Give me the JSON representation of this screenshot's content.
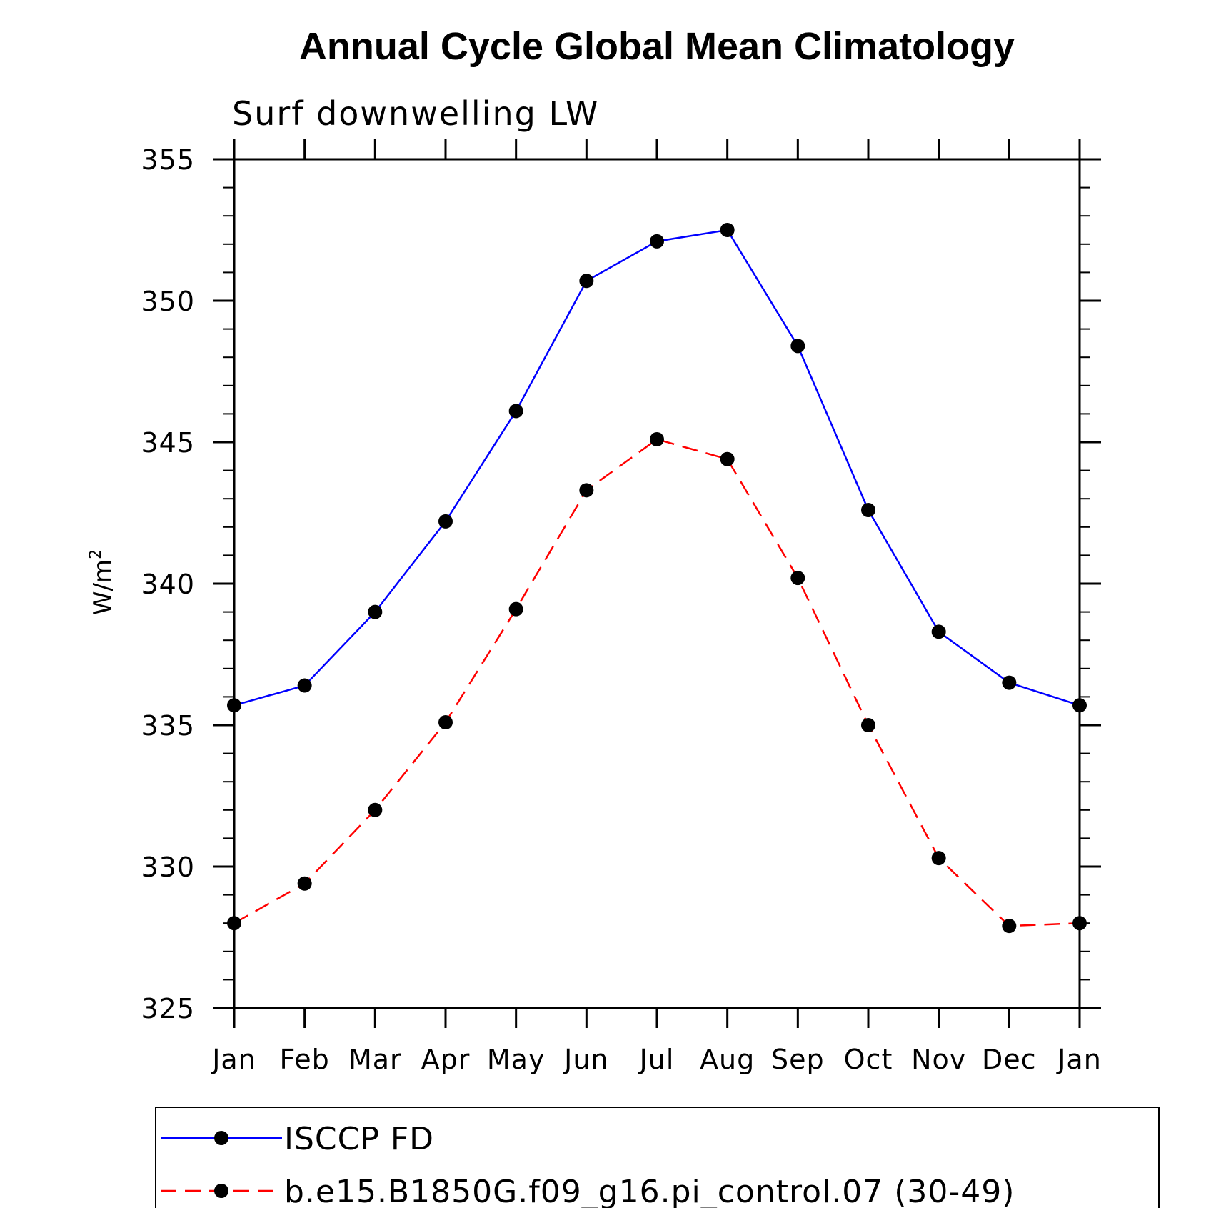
{
  "chart_data": {
    "type": "line",
    "title": "Annual Cycle Global Mean Climatology",
    "subtitle": "Surf downwelling LW",
    "ylabel": "W/m",
    "ylabel_superscript": "2",
    "xlabel": "",
    "categories": [
      "Jan",
      "Feb",
      "Mar",
      "Apr",
      "May",
      "Jun",
      "Jul",
      "Aug",
      "Sep",
      "Oct",
      "Nov",
      "Dec",
      "Jan"
    ],
    "ylim": [
      325,
      355
    ],
    "yticks": [
      325,
      330,
      335,
      340,
      345,
      350,
      355
    ],
    "legend_position": "bottom",
    "series": [
      {
        "name": "ISCCP FD",
        "color": "#0000ff",
        "line_style": "solid",
        "values": [
          335.7,
          336.4,
          339.0,
          342.2,
          346.1,
          350.7,
          352.1,
          352.5,
          348.4,
          342.6,
          338.3,
          336.5,
          335.7
        ]
      },
      {
        "name": "b.e15.B1850G.f09_g16.pi_control.07 (30-49)",
        "color": "#ff0000",
        "line_style": "dashed",
        "values": [
          328.0,
          329.4,
          332.0,
          335.1,
          339.1,
          343.3,
          345.1,
          344.4,
          340.2,
          335.0,
          330.3,
          327.9,
          328.0
        ]
      }
    ]
  }
}
